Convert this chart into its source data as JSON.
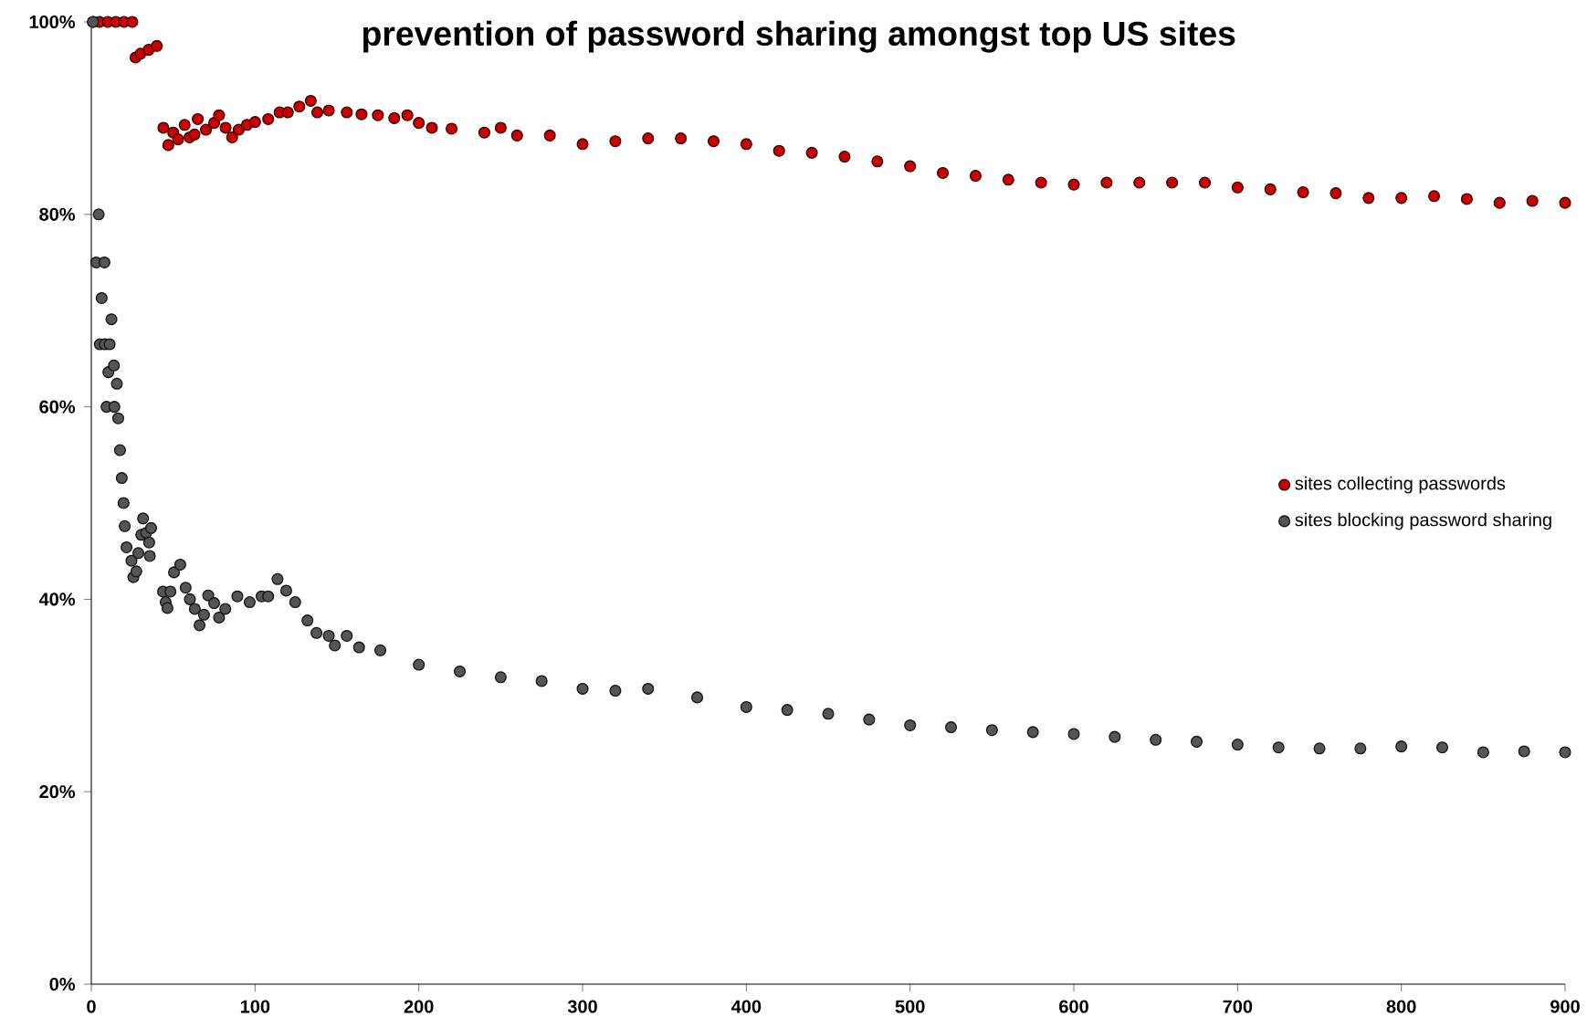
{
  "chart_data": {
    "type": "scatter",
    "title": "prevention of password sharing amongst top US sites",
    "xlim": [
      0,
      900
    ],
    "xticks": [
      0,
      100,
      200,
      300,
      400,
      500,
      600,
      700,
      800,
      900
    ],
    "ylim": [
      0,
      100
    ],
    "yticks": [
      {
        "value": 0,
        "label": "0%"
      },
      {
        "value": 20,
        "label": "20%"
      },
      {
        "value": 40,
        "label": "40%"
      },
      {
        "value": 60,
        "label": "60%"
      },
      {
        "value": 80,
        "label": "80%"
      },
      {
        "value": 100,
        "label": "100%"
      }
    ],
    "marker": "circle",
    "legend": "right",
    "grid": false,
    "series": [
      {
        "name": "sites collecting passwords",
        "color": "#cc0000",
        "x": [
          1,
          5,
          10,
          15,
          20,
          25,
          27,
          30,
          35,
          40,
          44,
          47,
          50,
          53,
          57,
          60,
          63,
          65,
          70,
          75,
          78,
          82,
          86,
          90,
          95,
          100,
          108,
          115,
          120,
          127,
          134,
          138,
          145,
          156,
          165,
          175,
          185,
          193,
          200,
          208,
          220,
          240,
          250,
          260,
          280,
          300,
          320,
          340,
          360,
          380,
          400,
          420,
          440,
          460,
          480,
          500,
          520,
          540,
          560,
          580,
          600,
          620,
          640,
          660,
          680,
          700,
          720,
          740,
          760,
          780,
          800,
          820,
          840,
          860,
          880,
          900
        ],
        "values": [
          100,
          100,
          100,
          100,
          100,
          100,
          96.3,
          96.7,
          97.1,
          97.5,
          89,
          87.2,
          88.5,
          87.8,
          89.3,
          88,
          88.3,
          89.9,
          88.8,
          89.5,
          90.3,
          89,
          88,
          88.8,
          89.3,
          89.6,
          89.9,
          90.6,
          90.6,
          91.2,
          91.8,
          90.6,
          90.8,
          90.6,
          90.4,
          90.3,
          90,
          90.3,
          89.5,
          89,
          88.9,
          88.5,
          89,
          88.2,
          88.2,
          87.3,
          87.6,
          87.9,
          87.9,
          87.6,
          87.3,
          86.6,
          86.4,
          86,
          85.5,
          85,
          84.3,
          84,
          83.6,
          83.3,
          83.1,
          83.3,
          83.3,
          83.3,
          83.3,
          82.8,
          82.6,
          82.3,
          82.2,
          81.7,
          81.7,
          81.9,
          81.6,
          81.2,
          81.4,
          81.2
        ]
      },
      {
        "name": "sites blocking password sharing",
        "color": "#555555",
        "x": [
          1,
          3,
          4.5,
          5.2,
          6.3,
          8,
          8.2,
          9.3,
          10.4,
          11.2,
          12.3,
          13.8,
          14.1,
          15.6,
          16.4,
          17.5,
          18.6,
          19.7,
          20.4,
          21.5,
          24.5,
          25.7,
          27.5,
          28.7,
          30.5,
          31.6,
          33.5,
          35.3,
          35.7,
          36.5,
          43.8,
          45.4,
          46.5,
          48.3,
          50.5,
          54.3,
          57.6,
          60.2,
          63.2,
          66.1,
          68.8,
          71.4,
          75,
          78,
          81.8,
          89.2,
          96.7,
          104,
          108,
          113.7,
          119,
          124.5,
          132,
          137.5,
          145,
          148.7,
          156,
          163.5,
          176.5,
          200,
          225,
          250,
          275,
          300,
          320,
          340,
          370,
          400,
          425,
          450,
          475,
          500,
          525,
          550,
          575,
          600,
          625,
          650,
          675,
          700,
          725,
          750,
          775,
          800,
          825,
          850,
          875,
          900
        ],
        "values": [
          100,
          75,
          80,
          66.5,
          71.3,
          75,
          66.5,
          60,
          63.6,
          66.5,
          69.1,
          64.3,
          60,
          62.4,
          58.8,
          55.5,
          52.6,
          50,
          47.6,
          45.4,
          44,
          42.3,
          42.9,
          44.8,
          46.7,
          48.4,
          46.9,
          45.9,
          44.5,
          47.4,
          40.8,
          39.7,
          39.1,
          40.8,
          42.8,
          43.6,
          41.2,
          40,
          39,
          37.3,
          38.4,
          40.4,
          39.6,
          38.1,
          39,
          40.3,
          39.7,
          40.3,
          40.3,
          42.1,
          40.9,
          39.7,
          37.8,
          36.5,
          36.2,
          35.2,
          36.2,
          35,
          34.7,
          33.2,
          32.5,
          31.9,
          31.5,
          30.7,
          30.5,
          30.7,
          29.8,
          28.8,
          28.5,
          28.1,
          27.5,
          26.9,
          26.7,
          26.4,
          26.2,
          26,
          25.7,
          25.4,
          25.2,
          24.9,
          24.6,
          24.5,
          24.5,
          24.7,
          24.6,
          24.1,
          24.2,
          24.1
        ]
      }
    ]
  }
}
